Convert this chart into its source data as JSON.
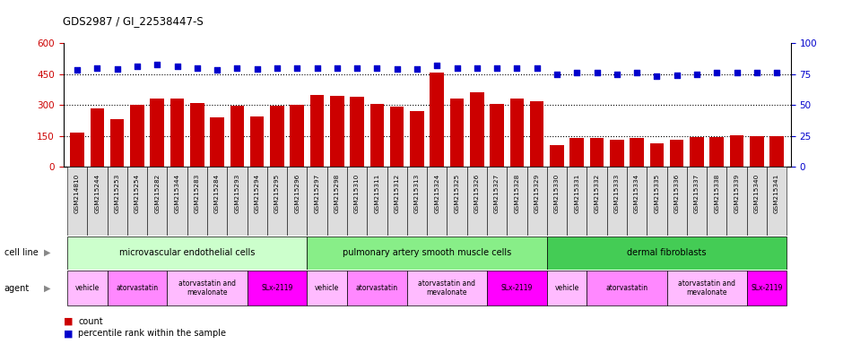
{
  "title": "GDS2987 / GI_22538447-S",
  "samples": [
    "GSM214810",
    "GSM215244",
    "GSM215253",
    "GSM215254",
    "GSM215282",
    "GSM215344",
    "GSM215283",
    "GSM215284",
    "GSM215293",
    "GSM215294",
    "GSM215295",
    "GSM215296",
    "GSM215297",
    "GSM215298",
    "GSM215310",
    "GSM215311",
    "GSM215312",
    "GSM215313",
    "GSM215324",
    "GSM215325",
    "GSM215326",
    "GSM215327",
    "GSM215328",
    "GSM215329",
    "GSM215330",
    "GSM215331",
    "GSM215332",
    "GSM215333",
    "GSM215334",
    "GSM215335",
    "GSM215336",
    "GSM215337",
    "GSM215338",
    "GSM215339",
    "GSM215340",
    "GSM215341"
  ],
  "counts": [
    165,
    285,
    230,
    300,
    330,
    330,
    310,
    240,
    295,
    245,
    295,
    300,
    350,
    345,
    340,
    305,
    290,
    270,
    455,
    330,
    360,
    305,
    330,
    320,
    105,
    140,
    140,
    130,
    140,
    115,
    130,
    145,
    145,
    155,
    150,
    150
  ],
  "percentiles": [
    78,
    80,
    79,
    81,
    83,
    81,
    80,
    78,
    80,
    79,
    80,
    80,
    80,
    80,
    80,
    80,
    79,
    79,
    82,
    80,
    80,
    80,
    80,
    80,
    75,
    76,
    76,
    75,
    76,
    73,
    74,
    75,
    76,
    76,
    76,
    76
  ],
  "bar_color": "#cc0000",
  "dot_color": "#0000cc",
  "ylim_left": [
    0,
    600
  ],
  "ylim_right": [
    0,
    100
  ],
  "yticks_left": [
    0,
    150,
    300,
    450,
    600
  ],
  "yticks_right": [
    0,
    25,
    50,
    75,
    100
  ],
  "cell_line_groups": [
    {
      "label": "microvascular endothelial cells",
      "start": 0,
      "end": 12
    },
    {
      "label": "pulmonary artery smooth muscle cells",
      "start": 12,
      "end": 24
    },
    {
      "label": "dermal fibroblasts",
      "start": 24,
      "end": 36
    }
  ],
  "cell_line_colors": [
    "#ccffcc",
    "#88ee88",
    "#44cc55"
  ],
  "agent_groups": [
    {
      "label": "vehicle",
      "start": 0,
      "end": 2
    },
    {
      "label": "atorvastatin",
      "start": 2,
      "end": 5
    },
    {
      "label": "atorvastatin and\nmevalonate",
      "start": 5,
      "end": 9
    },
    {
      "label": "SLx-2119",
      "start": 9,
      "end": 12
    },
    {
      "label": "vehicle",
      "start": 12,
      "end": 14
    },
    {
      "label": "atorvastatin",
      "start": 14,
      "end": 17
    },
    {
      "label": "atorvastatin and\nmevalonate",
      "start": 17,
      "end": 21
    },
    {
      "label": "SLx-2119",
      "start": 21,
      "end": 24
    },
    {
      "label": "vehicle",
      "start": 24,
      "end": 26
    },
    {
      "label": "atorvastatin",
      "start": 26,
      "end": 30
    },
    {
      "label": "atorvastatin and\nmevalonate",
      "start": 30,
      "end": 34
    },
    {
      "label": "SLx-2119",
      "start": 34,
      "end": 36
    }
  ],
  "agent_type_colors": {
    "vehicle": "#ffbbff",
    "atorvastatin": "#ff88ff",
    "mevalonate": "#ffbbff",
    "slx": "#ff00ff"
  },
  "legend_count_color": "#cc0000",
  "legend_pct_color": "#0000cc",
  "cell_line_row_label": "cell line",
  "agent_row_label": "agent",
  "legend_count_label": "count",
  "legend_pct_label": "percentile rank within the sample",
  "tick_bg_color": "#dddddd"
}
